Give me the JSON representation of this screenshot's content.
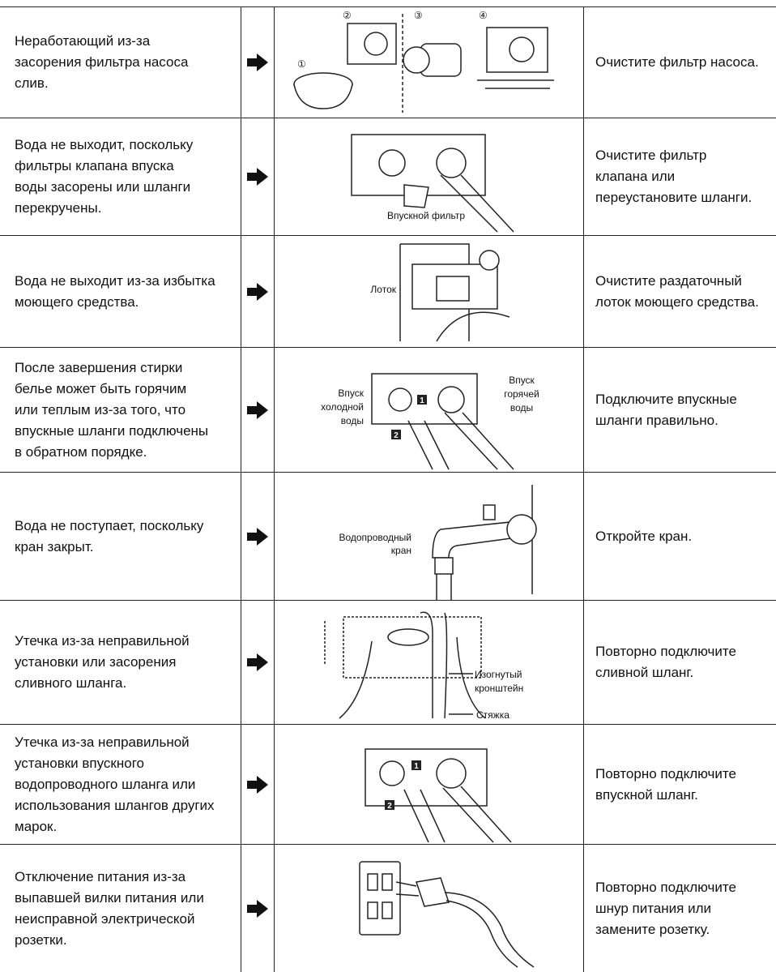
{
  "rows": [
    {
      "problem": [
        "Неработающий из-за",
        "засорения фильтра насоса",
        "слив."
      ],
      "figure": {
        "labels": [
          "①",
          "②",
          "③",
          "④"
        ]
      },
      "solution": [
        "Очистите фильтр насоса."
      ]
    },
    {
      "problem": [
        "Вода не выходит, поскольку",
        "фильтры клапана впуска",
        "воды засорены или шланги",
        "перекручены."
      ],
      "figure": {
        "labels": [
          "Впускной фильтр"
        ]
      },
      "solution": [
        "Очистите фильтр",
        "клапана или",
        "переустановите шланги."
      ]
    },
    {
      "problem": [
        "Вода не выходит из-за избытка",
        "моющего средства."
      ],
      "figure": {
        "labels": [
          "Лоток"
        ]
      },
      "solution": [
        "Очистите раздаточный",
        "лоток моющего средства."
      ]
    },
    {
      "problem": [
        "После завершения стирки",
        "белье может быть горячим",
        "или теплым из-за того, что",
        "впускные шланги подключены",
        "в обратном порядке."
      ],
      "figure": {
        "labels": [
          "Впуск",
          "холодной",
          "воды",
          "Впуск",
          "горячей",
          "воды",
          "1",
          "2"
        ]
      },
      "solution": [
        "Подключите впускные",
        "шланги правильно."
      ]
    },
    {
      "problem": [
        "Вода не поступает, поскольку",
        "кран закрыт."
      ],
      "figure": {
        "labels": [
          "Водопроводный",
          "кран"
        ]
      },
      "solution": [
        "Откройте кран."
      ]
    },
    {
      "problem": [
        "Утечка из-за неправильной",
        "установки или засорения",
        "сливного шланга."
      ],
      "figure": {
        "labels": [
          "Изогнутый",
          "кронштейн",
          "Стяжка"
        ]
      },
      "solution": [
        "Повторно подключите",
        "сливной шланг."
      ]
    },
    {
      "problem": [
        "Утечка из-за неправильной",
        "установки впускного",
        "водопроводного шланга или",
        "использования шлангов других",
        "марок."
      ],
      "figure": {
        "labels": [
          "1",
          "2"
        ]
      },
      "solution": [
        "Повторно подключите",
        "впускной шланг."
      ]
    },
    {
      "problem": [
        "Отключение питания из-за",
        "выпавшей вилки питания или",
        "неисправной электрической",
        "розетки."
      ],
      "figure": {
        "labels": []
      },
      "solution": [
        "Повторно подключите",
        "шнур питания или",
        "замените розетку."
      ]
    }
  ]
}
